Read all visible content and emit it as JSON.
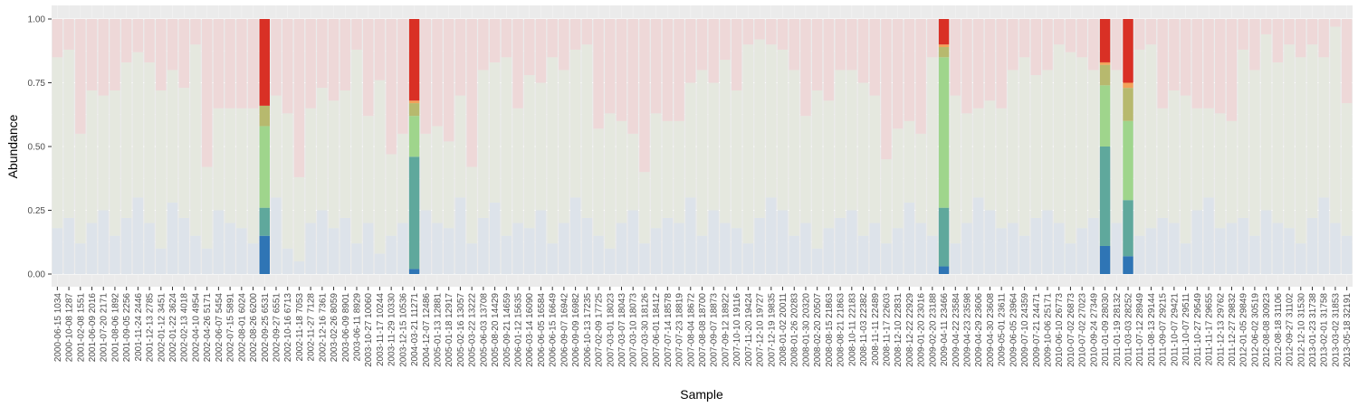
{
  "chart_data": {
    "type": "bar",
    "stacked": true,
    "xlabel": "Sample",
    "ylabel": "Abundance",
    "ylim": [
      0,
      1
    ],
    "y_ticks": [
      "0.00",
      "0.25",
      "0.50",
      "0.75",
      "1.00"
    ],
    "y_tick_values": [
      0,
      0.25,
      0.5,
      0.75,
      1.0
    ],
    "grid": true,
    "background": "#ebebeb",
    "colors": {
      "dark_blue": "#2f75b5",
      "teal": "#5fa89c",
      "green": "#9fd58c",
      "olive": "#b7b96e",
      "orange": "#f2a25a",
      "red": "#d93025",
      "faded_blue": "#dde3ea",
      "faded_cream": "#e5e8df",
      "faded_pink": "#eed8d8"
    },
    "categories": [
      "2000-06-15 1034",
      "2000-10-08 1287",
      "2001-02-08 1551",
      "2001-06-09 2016",
      "2001-07-20 2171",
      "2001-08-06 1892",
      "2001-09-05 2256",
      "2001-11-24 2446",
      "2001-12-13 2785",
      "2002-01-12 3451",
      "2002-01-22 3624",
      "2002-02-13 4018",
      "2002-04-10 4954",
      "2002-04-26 5171",
      "2002-06-07 5454",
      "2002-07-15 5891",
      "2002-08-01 6024",
      "2002-08-26 6200",
      "2002-09-25 6531",
      "2002-09-27 6551",
      "2002-10-16 6713",
      "2002-11-18 7053",
      "2002-11-27 7128",
      "2002-12-16 7361",
      "2003-02-26 8059",
      "2003-06-09 8901",
      "2003-06-11 8929",
      "2003-10-27 10060",
      "2003-11-17 10244",
      "2003-11-29 10330",
      "2003-12-15 10536",
      "2004-03-21 11271",
      "2004-12-07 12486",
      "2005-01-13 12881",
      "2005-01-18 12917",
      "2005-02-16 13057",
      "2005-03-22 13222",
      "2005-06-03 13708",
      "2005-08-20 14429",
      "2005-09-21 14659",
      "2006-01-12 15635",
      "2006-03-14 16090",
      "2006-06-05 16584",
      "2006-06-15 16649",
      "2006-09-07 16942",
      "2006-09-09 16982",
      "2006-10-13 17235",
      "2007-02-09 17725",
      "2007-03-01 18023",
      "2007-03-07 18043",
      "2007-03-10 18073",
      "2007-03-30 18126",
      "2007-06-01 18412",
      "2007-07-14 18578",
      "2007-07-23 18819",
      "2007-08-04 18672",
      "2007-08-08 18700",
      "2007-09-07 18873",
      "2007-09-12 18922",
      "2007-10-10 19116",
      "2007-11-20 19424",
      "2007-12-10 19727",
      "2007-12-19 19835",
      "2008-01-02 20011",
      "2008-01-26 20283",
      "2008-01-30 20320",
      "2008-02-20 20507",
      "2008-08-15 21863",
      "2008-08-21 21863",
      "2008-10-11 22183",
      "2008-11-03 22382",
      "2008-11-11 22489",
      "2008-11-17 22603",
      "2008-12-10 22831",
      "2008-12-22 22929",
      "2009-01-20 23016",
      "2009-02-20 23188",
      "2009-04-11 23466",
      "2009-04-22 23584",
      "2009-04-23 23598",
      "2009-04-29 23606",
      "2009-04-30 23608",
      "2009-05-01 23611",
      "2009-06-05 23964",
      "2009-07-10 24359",
      "2009-07-21 24471",
      "2009-10-06 25171",
      "2010-06-10 26773",
      "2010-07-02 26873",
      "2010-07-02 27023",
      "2010-09-24 27349",
      "2011-01-09 28030",
      "2011-01-19 28132",
      "2011-03-03 28252",
      "2011-07-12 28949",
      "2011-08-13 29144",
      "2011-09-07 29215",
      "2011-10-07 29421",
      "2011-10-07 29511",
      "2011-10-27 29549",
      "2011-11-17 29655",
      "2011-12-13 29762",
      "2011-12-27 29832",
      "2012-01-05 29849",
      "2012-06-02 30519",
      "2012-08-08 30923",
      "2012-08-18 31106",
      "2012-09-27 31102",
      "2012-12-10 31530",
      "2013-01-23 31738",
      "2013-02-01 31758",
      "2013-03-02 31853",
      "2013-05-18 32191"
    ],
    "highlighted_samples": [
      {
        "name": "2002-09-25 6531",
        "values": {
          "dark_blue": 0.15,
          "teal": 0.11,
          "green": 0.32,
          "olive": 0.08,
          "orange": 0.0,
          "red": 0.34
        }
      },
      {
        "name": "2004-03-21 11271",
        "values": {
          "dark_blue": 0.02,
          "teal": 0.44,
          "green": 0.16,
          "olive": 0.05,
          "orange": 0.01,
          "red": 0.32
        }
      },
      {
        "name": "2009-04-11 23466",
        "values": {
          "dark_blue": 0.03,
          "teal": 0.23,
          "green": 0.59,
          "olive": 0.04,
          "orange": 0.01,
          "red": 0.1
        }
      },
      {
        "name": "2011-01-09 28030",
        "values": {
          "dark_blue": 0.11,
          "teal": 0.39,
          "green": 0.24,
          "olive": 0.08,
          "orange": 0.01,
          "red": 0.17
        }
      },
      {
        "name": "2011-03-03 28252",
        "values": {
          "dark_blue": 0.07,
          "teal": 0.22,
          "green": 0.31,
          "olive": 0.13,
          "orange": 0.02,
          "red": 0.25
        }
      }
    ],
    "faded_top_pink": [
      0.15,
      0.12,
      0.45,
      0.28,
      0.3,
      0.28,
      0.17,
      0.13,
      0.17,
      0.28,
      0.2,
      0.27,
      0.1,
      0.58,
      0.35,
      0.35,
      0.35,
      0.35,
      0.28,
      0.3,
      0.37,
      0.62,
      0.35,
      0.27,
      0.32,
      0.28,
      0.12,
      0.38,
      0.24,
      0.53,
      0.45,
      0.3,
      0.45,
      0.42,
      0.48,
      0.3,
      0.58,
      0.2,
      0.17,
      0.15,
      0.35,
      0.22,
      0.25,
      0.15,
      0.2,
      0.12,
      0.1,
      0.43,
      0.37,
      0.4,
      0.45,
      0.6,
      0.37,
      0.4,
      0.4,
      0.25,
      0.2,
      0.25,
      0.16,
      0.28,
      0.1,
      0.08,
      0.1,
      0.12,
      0.2,
      0.38,
      0.28,
      0.32,
      0.2,
      0.2,
      0.25,
      0.3,
      0.55,
      0.43,
      0.4,
      0.45,
      0.15,
      0.12,
      0.3,
      0.37,
      0.35,
      0.32,
      0.35,
      0.2,
      0.15,
      0.22,
      0.2,
      0.1,
      0.13,
      0.15,
      0.2,
      0.17,
      0.2,
      0.25,
      0.12,
      0.1,
      0.35,
      0.28,
      0.3,
      0.35,
      0.35,
      0.37,
      0.4,
      0.12,
      0.2,
      0.06,
      0.17,
      0.1,
      0.15,
      0.1,
      0.15,
      0.03,
      0.33
    ],
    "faded_bottom_blue": [
      0.18,
      0.22,
      0.12,
      0.2,
      0.25,
      0.15,
      0.22,
      0.3,
      0.2,
      0.1,
      0.28,
      0.22,
      0.15,
      0.1,
      0.25,
      0.2,
      0.18,
      0.12,
      0.26,
      0.3,
      0.1,
      0.05,
      0.2,
      0.25,
      0.18,
      0.22,
      0.12,
      0.2,
      0.08,
      0.15,
      0.2,
      0.1,
      0.25,
      0.2,
      0.18,
      0.3,
      0.12,
      0.22,
      0.28,
      0.15,
      0.2,
      0.18,
      0.25,
      0.12,
      0.2,
      0.3,
      0.22,
      0.15,
      0.1,
      0.2,
      0.25,
      0.12,
      0.18,
      0.22,
      0.2,
      0.3,
      0.15,
      0.25,
      0.2,
      0.18,
      0.12,
      0.22,
      0.3,
      0.25,
      0.15,
      0.2,
      0.1,
      0.18,
      0.22,
      0.25,
      0.15,
      0.2,
      0.12,
      0.18,
      0.28,
      0.2,
      0.15,
      0.22,
      0.12,
      0.2,
      0.3,
      0.25,
      0.18,
      0.2,
      0.15,
      0.22,
      0.25,
      0.2,
      0.12,
      0.18,
      0.22,
      0.3,
      0.2,
      0.25,
      0.15,
      0.18,
      0.22,
      0.2,
      0.12,
      0.25,
      0.3,
      0.18,
      0.2,
      0.22,
      0.15,
      0.25,
      0.2,
      0.18,
      0.12,
      0.22,
      0.3,
      0.2,
      0.15
    ]
  }
}
